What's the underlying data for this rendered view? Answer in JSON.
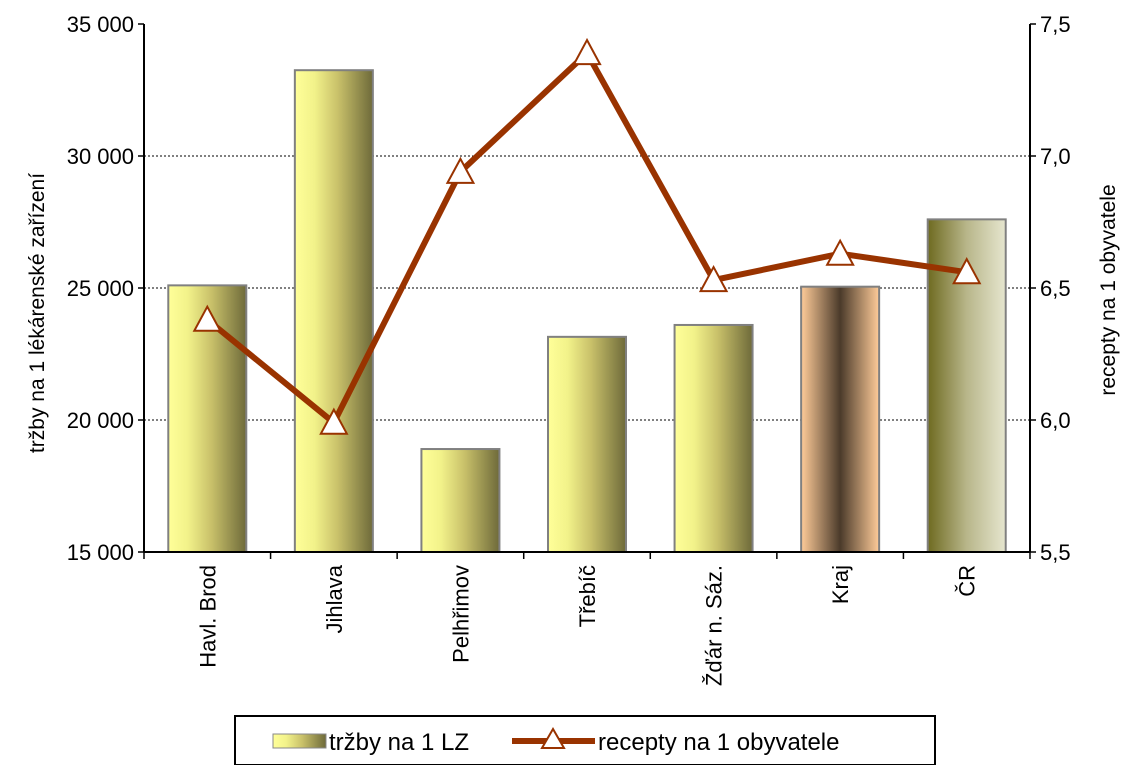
{
  "chart_data": {
    "type": "bar",
    "categories": [
      "Havl. Brod",
      "Jihlava",
      "Pelhřimov",
      "Třebíč",
      "Žďár n. Sáz.",
      "Kraj",
      "ČR"
    ],
    "series": [
      {
        "name": "tržby na 1 LZ",
        "type": "bar",
        "axis": "left",
        "values": [
          25100,
          33250,
          18900,
          23150,
          23600,
          25050,
          27600
        ]
      },
      {
        "name": "recepty na 1 obyvatele",
        "type": "line",
        "axis": "right",
        "color": "#993300",
        "values": [
          6.38,
          5.99,
          6.94,
          7.39,
          6.53,
          6.63,
          6.56
        ]
      }
    ],
    "ylabel": "tržby na 1 lékárenské zařízení",
    "y2label": "recepty na 1 obyvatele",
    "ylim": [
      15000,
      35000
    ],
    "y2lim": [
      5.5,
      7.5
    ],
    "yticks": [
      "15 000",
      "20 000",
      "25 000",
      "30 000",
      "35 000"
    ],
    "y2ticks": [
      "5,5",
      "6,0",
      "6,5",
      "7,0",
      "7,5"
    ],
    "grid": true,
    "legend_position": "bottom"
  }
}
